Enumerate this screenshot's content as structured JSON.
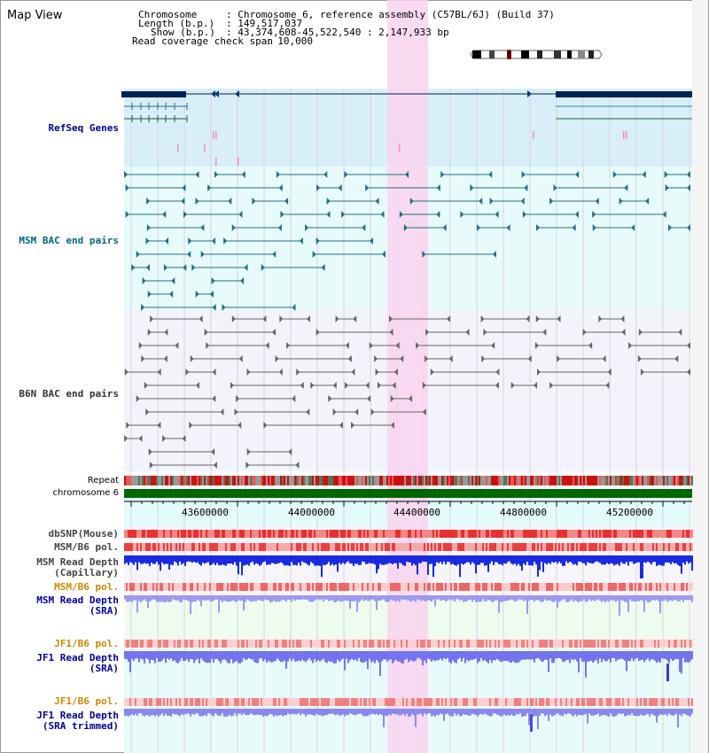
{
  "app": {
    "title": "Map View"
  },
  "header": {
    "chromosome_key": "Chromosome",
    "chromosome_value": ": Chromosome 6, reference assembly (C57BL/6J) (Build 37)",
    "length_key": "Length (b.p.)",
    "length_value": ": 149,517,037",
    "show_key": "Show (b.p.)",
    "show_value": ": 43,374,608-45,522,540 : 2,147,933 bp",
    "coverage_key": "Read coverage check span",
    "coverage_value": ": 10,000"
  },
  "tracks": {
    "refseq": "RefSeq Genes",
    "msm_bac": "MSM BAC end pairs",
    "b6n_bac": "B6N BAC end pairs",
    "repeat": "Repeat",
    "chromosome": "chromosome 6",
    "dbsnp": "dbSNP(Mouse)",
    "msm_b6_pol_1": "MSM/B6 pol.",
    "msm_depth_cap_1": "MSM Read Depth",
    "msm_depth_cap_2": "(Capillary)",
    "msm_b6_pol_2": "MSM/B6 pol.",
    "msm_depth_sra_1": "MSM Read Depth",
    "msm_depth_sra_2": "(SRA)",
    "jf1_b6_pol_1": "JF1/B6 pol.",
    "jf1_depth_sra_1": "JF1 Read Depth",
    "jf1_depth_sra_2": "(SRA)",
    "jf1_b6_pol_2": "JF1/B6 pol.",
    "jf1_depth_trim_1": "JF1 Read Depth",
    "jf1_depth_trim_2": "(SRA trimmed)"
  },
  "axis": {
    "ticks": [
      "43600000",
      "44000000",
      "44400000",
      "44800000",
      "45200000"
    ]
  },
  "colors": {
    "refseq_label": "#000099",
    "msm_label": "#006680",
    "b6n_label": "#333333",
    "pol_label": "#cc8800",
    "depth_label": "#000099",
    "highlight": "#f9d3ee",
    "gene_dark": "#002255",
    "chrom_green": "#006600"
  },
  "icons": {
    "ideogram": "chromosome-ideogram-icon"
  }
}
